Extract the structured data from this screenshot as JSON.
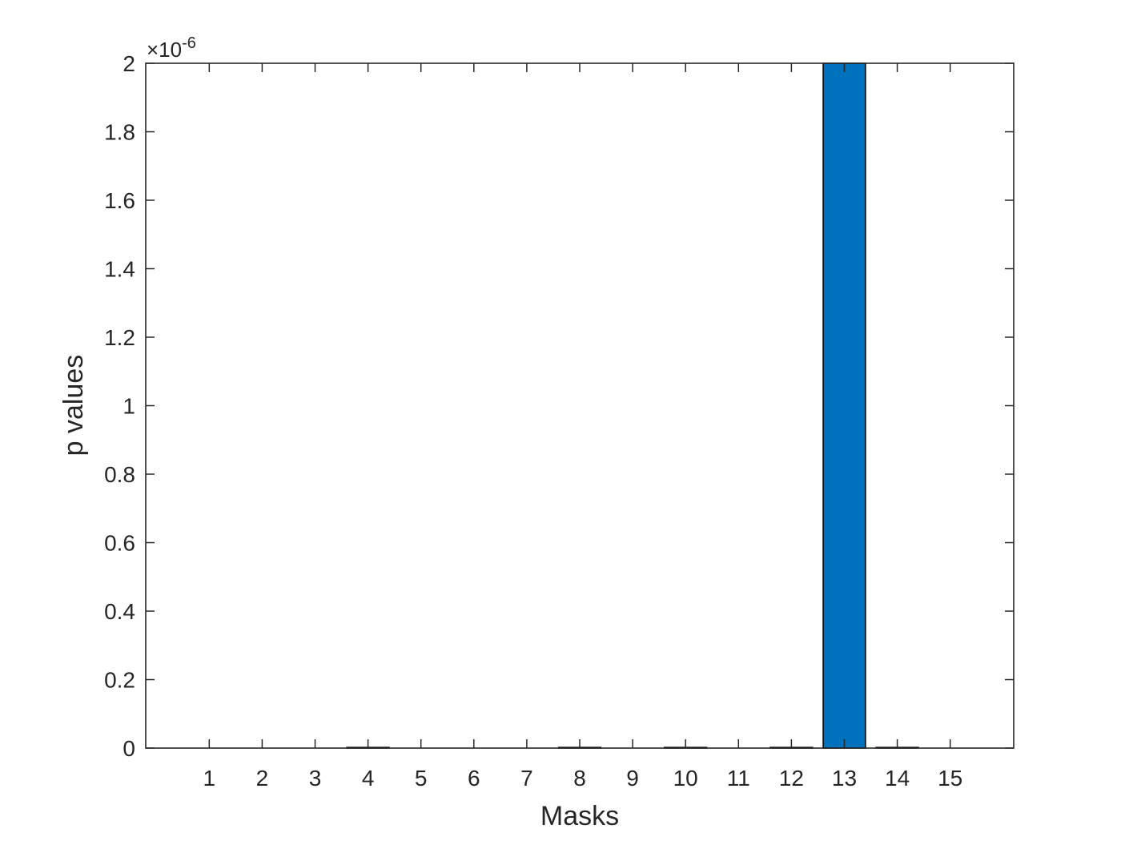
{
  "chart_data": {
    "type": "bar",
    "categories": [
      "1",
      "2",
      "3",
      "4",
      "5",
      "6",
      "7",
      "8",
      "9",
      "10",
      "11",
      "12",
      "13",
      "14",
      "15"
    ],
    "values": [
      0,
      0,
      0,
      2e-09,
      0,
      0,
      0,
      2e-09,
      0,
      2e-09,
      0,
      2e-09,
      2e-06,
      2e-09,
      0
    ],
    "xlabel": "Masks",
    "ylabel": "p values",
    "ylim": [
      0,
      2e-06
    ],
    "xlim": [
      -0.2,
      16.2
    ],
    "yticks": [
      0,
      0.2,
      0.4,
      0.6,
      0.8,
      1,
      1.2,
      1.4,
      1.6,
      1.8,
      2
    ],
    "ytick_labels": [
      "0",
      "0.2",
      "0.4",
      "0.6",
      "0.8",
      "1",
      "1.2",
      "1.4",
      "1.6",
      "1.8",
      "2"
    ],
    "y_exponent_label": "×10",
    "y_exponent": "-6",
    "bar_color": "#0072bd",
    "grid": false,
    "legend": "none"
  }
}
